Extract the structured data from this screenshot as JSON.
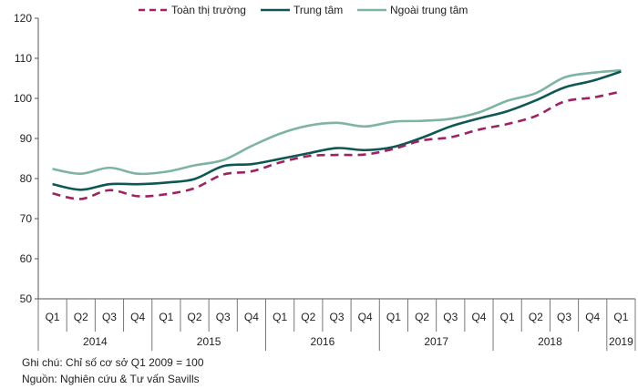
{
  "chart_data": {
    "type": "line",
    "title": "",
    "xlabel": "",
    "ylabel": "",
    "ylim": [
      50,
      120
    ],
    "yticks": [
      50,
      60,
      70,
      80,
      90,
      100,
      110,
      120
    ],
    "grid": false,
    "legend_position": "top",
    "quarters": [
      "Q1",
      "Q2",
      "Q3",
      "Q4",
      "Q1",
      "Q2",
      "Q3",
      "Q4",
      "Q1",
      "Q2",
      "Q3",
      "Q4",
      "Q1",
      "Q2",
      "Q3",
      "Q4",
      "Q1",
      "Q2",
      "Q3",
      "Q4",
      "Q1"
    ],
    "years": [
      {
        "label": "2014",
        "quarters": 4
      },
      {
        "label": "2015",
        "quarters": 4
      },
      {
        "label": "2016",
        "quarters": 4
      },
      {
        "label": "2017",
        "quarters": 4
      },
      {
        "label": "2018",
        "quarters": 4
      },
      {
        "label": "2019",
        "quarters": 1
      }
    ],
    "series": [
      {
        "name": "Toàn thị trường",
        "color": "#9c2463",
        "style": "dashed",
        "values": [
          76.3,
          74.9,
          77.1,
          75.6,
          76.1,
          77.6,
          81.0,
          81.8,
          84.0,
          85.6,
          85.9,
          86.0,
          87.4,
          89.5,
          90.3,
          92.2,
          93.6,
          95.6,
          99.2,
          100.2,
          101.7
        ]
      },
      {
        "name": "Trung tâm",
        "color": "#0e5755",
        "style": "solid",
        "values": [
          78.6,
          77.2,
          78.6,
          78.6,
          79.0,
          79.9,
          83.1,
          83.6,
          84.9,
          86.3,
          87.6,
          87.1,
          87.9,
          90.2,
          93.0,
          95.0,
          96.8,
          99.5,
          102.7,
          104.4,
          106.7
        ]
      },
      {
        "name": "Ngoài trung tâm",
        "color": "#7fb3a6",
        "style": "solid",
        "values": [
          82.4,
          81.2,
          82.7,
          81.2,
          81.7,
          83.3,
          84.6,
          88.1,
          91.2,
          93.2,
          93.9,
          93.0,
          94.2,
          94.4,
          94.9,
          96.5,
          99.4,
          101.3,
          105.2,
          106.4,
          107.0
        ]
      }
    ]
  },
  "notes": {
    "line1": "Ghi chú: Chỉ số cơ sở Q1 2009  = 100",
    "line2": "Nguồn: Nghiên cứu & Tư vấn Savills"
  }
}
